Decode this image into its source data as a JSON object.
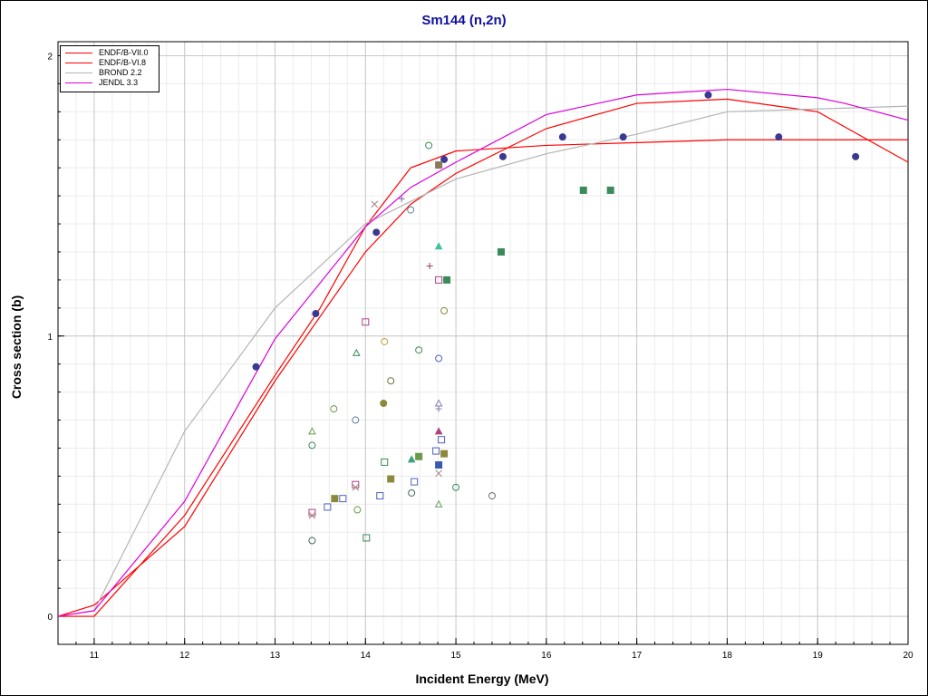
{
  "chart_data": {
    "type": "line",
    "title": "Sm144 (n,2n)",
    "xlabel": "Incident Energy (MeV)",
    "ylabel": "Cross section (b)",
    "xlim": [
      10.6,
      20
    ],
    "ylim": [
      -0.1,
      2.05
    ],
    "x_ticks": [
      "11",
      "12",
      "13",
      "14",
      "15",
      "16",
      "17",
      "18",
      "19",
      "20"
    ],
    "y_ticks": [
      "0",
      "1",
      "2"
    ],
    "grid": true,
    "legend_position": "top-left",
    "series": [
      {
        "name": "ENDF/B-VII.0",
        "color": "#ff0000",
        "x": [
          10.6,
          11,
          12,
          13,
          14,
          14.5,
          15,
          16,
          17,
          18,
          19,
          20
        ],
        "y": [
          0,
          0.04,
          0.32,
          0.84,
          1.3,
          1.47,
          1.58,
          1.74,
          1.83,
          1.845,
          1.8,
          1.62
        ]
      },
      {
        "name": "ENDF/B-VI.8",
        "color": "#ff0000",
        "x": [
          10.6,
          11,
          12,
          13,
          13.5,
          14,
          14.5,
          15,
          16,
          17,
          18,
          19,
          20
        ],
        "y": [
          0,
          0.0,
          0.36,
          0.86,
          1.1,
          1.39,
          1.6,
          1.66,
          1.68,
          1.69,
          1.7,
          1.7,
          1.7
        ]
      },
      {
        "name": "BROND 2.2",
        "color": "#b4b4b4",
        "x": [
          10.6,
          11,
          12,
          13,
          14,
          15,
          16,
          17,
          18,
          19,
          20
        ],
        "y": [
          0,
          0.02,
          0.66,
          1.1,
          1.4,
          1.56,
          1.65,
          1.72,
          1.8,
          1.81,
          1.82
        ]
      },
      {
        "name": "JENDL 3.3",
        "color": "#dd00dd",
        "x": [
          10.6,
          11,
          12,
          13,
          14,
          14.5,
          15,
          16,
          17,
          18,
          19,
          19.3,
          20
        ],
        "y": [
          0,
          0.02,
          0.41,
          0.99,
          1.39,
          1.53,
          1.62,
          1.79,
          1.86,
          1.88,
          1.85,
          1.83,
          1.77
        ]
      }
    ],
    "markers": [
      {
        "x": 12.79,
        "y": 0.89,
        "shape": "circle",
        "color": "#3a3a90",
        "fill": true
      },
      {
        "x": 13.45,
        "y": 1.08,
        "shape": "circle",
        "color": "#3a3a90",
        "fill": true
      },
      {
        "x": 14.12,
        "y": 1.37,
        "shape": "circle",
        "color": "#3a3a90",
        "fill": true
      },
      {
        "x": 14.87,
        "y": 1.63,
        "shape": "circle",
        "color": "#3a3a90",
        "fill": true
      },
      {
        "x": 15.52,
        "y": 1.64,
        "shape": "circle",
        "color": "#3a3a90",
        "fill": true
      },
      {
        "x": 16.18,
        "y": 1.71,
        "shape": "circle",
        "color": "#3a3a90",
        "fill": true
      },
      {
        "x": 16.85,
        "y": 1.71,
        "shape": "circle",
        "color": "#3a3a90",
        "fill": true
      },
      {
        "x": 17.79,
        "y": 1.86,
        "shape": "circle",
        "color": "#3a3a90",
        "fill": true
      },
      {
        "x": 18.57,
        "y": 1.71,
        "shape": "circle",
        "color": "#3a3a90",
        "fill": true
      },
      {
        "x": 19.42,
        "y": 1.64,
        "shape": "circle",
        "color": "#3a3a90",
        "fill": true
      },
      {
        "x": 14.7,
        "y": 1.68,
        "shape": "circle",
        "color": "#3a8a5a",
        "fill": false
      },
      {
        "x": 14.81,
        "y": 1.61,
        "shape": "square",
        "color": "#8a7a5a",
        "fill": true
      },
      {
        "x": 14.5,
        "y": 1.45,
        "shape": "circle",
        "color": "#6080a0",
        "fill": false
      },
      {
        "x": 14.4,
        "y": 1.49,
        "shape": "plus",
        "color": "#8060a0",
        "fill": false
      },
      {
        "x": 14.1,
        "y": 1.47,
        "shape": "cross",
        "color": "#a08080",
        "fill": false
      },
      {
        "x": 14.81,
        "y": 1.32,
        "shape": "triangle",
        "color": "#40c0a0",
        "fill": true
      },
      {
        "x": 14.71,
        "y": 1.25,
        "shape": "plus",
        "color": "#a04060",
        "fill": false
      },
      {
        "x": 14.81,
        "y": 1.2,
        "shape": "square",
        "color": "#b04080",
        "fill": false
      },
      {
        "x": 14.9,
        "y": 1.2,
        "shape": "square",
        "color": "#3a8a5a",
        "fill": true
      },
      {
        "x": 15.5,
        "y": 1.3,
        "shape": "square",
        "color": "#3a8a5a",
        "fill": true
      },
      {
        "x": 16.41,
        "y": 1.52,
        "shape": "square",
        "color": "#3a8a5a",
        "fill": true
      },
      {
        "x": 16.71,
        "y": 1.52,
        "shape": "square",
        "color": "#3a8a5a",
        "fill": true
      },
      {
        "x": 14.87,
        "y": 1.09,
        "shape": "circle",
        "color": "#8a8a3a",
        "fill": false
      },
      {
        "x": 14.0,
        "y": 1.05,
        "shape": "square",
        "color": "#b04080",
        "fill": false
      },
      {
        "x": 14.21,
        "y": 0.98,
        "shape": "circle",
        "color": "#c0a040",
        "fill": false
      },
      {
        "x": 14.59,
        "y": 0.95,
        "shape": "circle",
        "color": "#3a8a5a",
        "fill": false
      },
      {
        "x": 13.9,
        "y": 0.94,
        "shape": "triangle",
        "color": "#3a8a5a",
        "fill": false
      },
      {
        "x": 14.81,
        "y": 0.92,
        "shape": "circle",
        "color": "#5060c0",
        "fill": false
      },
      {
        "x": 14.28,
        "y": 0.84,
        "shape": "circle",
        "color": "#6a7a3a",
        "fill": false
      },
      {
        "x": 14.2,
        "y": 0.76,
        "shape": "circle",
        "color": "#8a8a3a",
        "fill": true
      },
      {
        "x": 13.65,
        "y": 0.74,
        "shape": "circle",
        "color": "#6a9a4a",
        "fill": false
      },
      {
        "x": 13.89,
        "y": 0.7,
        "shape": "circle",
        "color": "#6080a0",
        "fill": false
      },
      {
        "x": 14.81,
        "y": 0.76,
        "shape": "triangle",
        "color": "#8080b0",
        "fill": false
      },
      {
        "x": 14.81,
        "y": 0.74,
        "shape": "plus",
        "color": "#8080b0",
        "fill": false
      },
      {
        "x": 13.41,
        "y": 0.66,
        "shape": "triangle",
        "color": "#6a9a4a",
        "fill": false
      },
      {
        "x": 13.41,
        "y": 0.61,
        "shape": "circle",
        "color": "#3a8a5a",
        "fill": false
      },
      {
        "x": 14.81,
        "y": 0.66,
        "shape": "triangle",
        "color": "#b04080",
        "fill": true
      },
      {
        "x": 14.84,
        "y": 0.63,
        "shape": "square",
        "color": "#5060c0",
        "fill": false
      },
      {
        "x": 14.78,
        "y": 0.59,
        "shape": "square",
        "color": "#5060c0",
        "fill": false
      },
      {
        "x": 14.87,
        "y": 0.58,
        "shape": "square",
        "color": "#8a8a3a",
        "fill": true
      },
      {
        "x": 14.59,
        "y": 0.57,
        "shape": "square",
        "color": "#6a9a4a",
        "fill": true
      },
      {
        "x": 14.51,
        "y": 0.56,
        "shape": "triangle",
        "color": "#40a080",
        "fill": true
      },
      {
        "x": 14.21,
        "y": 0.55,
        "shape": "square",
        "color": "#3a8a5a",
        "fill": false
      },
      {
        "x": 14.81,
        "y": 0.54,
        "shape": "square",
        "color": "#3a5ab0",
        "fill": true
      },
      {
        "x": 14.81,
        "y": 0.51,
        "shape": "cross",
        "color": "#a08080",
        "fill": false
      },
      {
        "x": 14.28,
        "y": 0.49,
        "shape": "square",
        "color": "#8a8a3a",
        "fill": true
      },
      {
        "x": 14.54,
        "y": 0.48,
        "shape": "square",
        "color": "#5060c0",
        "fill": false
      },
      {
        "x": 13.89,
        "y": 0.47,
        "shape": "square",
        "color": "#b04080",
        "fill": false
      },
      {
        "x": 13.89,
        "y": 0.46,
        "shape": "cross",
        "color": "#a08080",
        "fill": false
      },
      {
        "x": 15.0,
        "y": 0.46,
        "shape": "circle",
        "color": "#3a8a5a",
        "fill": false
      },
      {
        "x": 14.51,
        "y": 0.44,
        "shape": "circle",
        "color": "#3a6a5a",
        "fill": false
      },
      {
        "x": 15.4,
        "y": 0.43,
        "shape": "circle",
        "color": "#6a6a6a",
        "fill": false
      },
      {
        "x": 14.16,
        "y": 0.43,
        "shape": "square",
        "color": "#5060c0",
        "fill": false
      },
      {
        "x": 13.75,
        "y": 0.42,
        "shape": "square",
        "color": "#5060c0",
        "fill": false
      },
      {
        "x": 13.66,
        "y": 0.42,
        "shape": "square",
        "color": "#8a8a3a",
        "fill": true
      },
      {
        "x": 14.81,
        "y": 0.4,
        "shape": "triangle",
        "color": "#6a9a6a",
        "fill": false
      },
      {
        "x": 13.58,
        "y": 0.39,
        "shape": "square",
        "color": "#5060c0",
        "fill": false
      },
      {
        "x": 13.91,
        "y": 0.38,
        "shape": "circle",
        "color": "#6a9a4a",
        "fill": false
      },
      {
        "x": 13.41,
        "y": 0.37,
        "shape": "square",
        "color": "#b04080",
        "fill": false
      },
      {
        "x": 13.41,
        "y": 0.36,
        "shape": "cross",
        "color": "#a08080",
        "fill": false
      },
      {
        "x": 14.01,
        "y": 0.28,
        "shape": "square",
        "color": "#3a8a5a",
        "fill": false
      },
      {
        "x": 13.41,
        "y": 0.27,
        "shape": "circle",
        "color": "#3a6a5a",
        "fill": false
      }
    ]
  }
}
